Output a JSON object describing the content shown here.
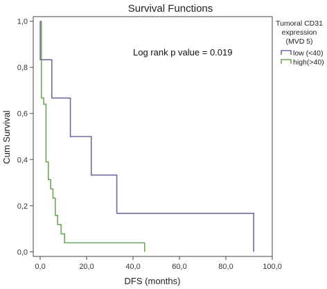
{
  "chart_data": {
    "type": "line",
    "title": "Survival Functions",
    "xlabel": "DFS (months)",
    "ylabel": "Cum Survival",
    "xlim": [
      -3,
      100
    ],
    "ylim": [
      -0.02,
      1.02
    ],
    "x_ticks": [
      0,
      20,
      40,
      60,
      80,
      100
    ],
    "x_tick_labels": [
      "0,0",
      "20,0",
      "40,0",
      "60,0",
      "80,0",
      "100,0"
    ],
    "y_ticks": [
      0,
      0.2,
      0.4,
      0.6,
      0.8,
      1.0
    ],
    "y_tick_labels": [
      "0,0",
      "0,2",
      "0,4",
      "0,6",
      "0,8",
      "1,0"
    ],
    "grid": false,
    "legend_position": "outside-right",
    "legend_title_lines": [
      "Tumoral CD31",
      "expression",
      "(MVD 5)"
    ],
    "annotation": "Log rank p value = 0.019",
    "series": [
      {
        "name": "low (<40)",
        "color": "#6e6aa0",
        "x": [
          0,
          5,
          13,
          22,
          33,
          92
        ],
        "y": [
          0.833,
          0.667,
          0.5,
          0.333,
          0.167,
          0.0
        ]
      },
      {
        "name": "high(>40)",
        "color": "#6ea65a",
        "x": [
          0,
          0.5,
          1.5,
          2.5,
          3.5,
          4.5,
          5.5,
          6.5,
          7.5,
          9,
          10.5,
          14,
          45
        ],
        "y": [
          1.0,
          0.667,
          0.64,
          0.39,
          0.313,
          0.273,
          0.233,
          0.158,
          0.118,
          0.078,
          0.039,
          0.039,
          0.0
        ]
      }
    ]
  }
}
